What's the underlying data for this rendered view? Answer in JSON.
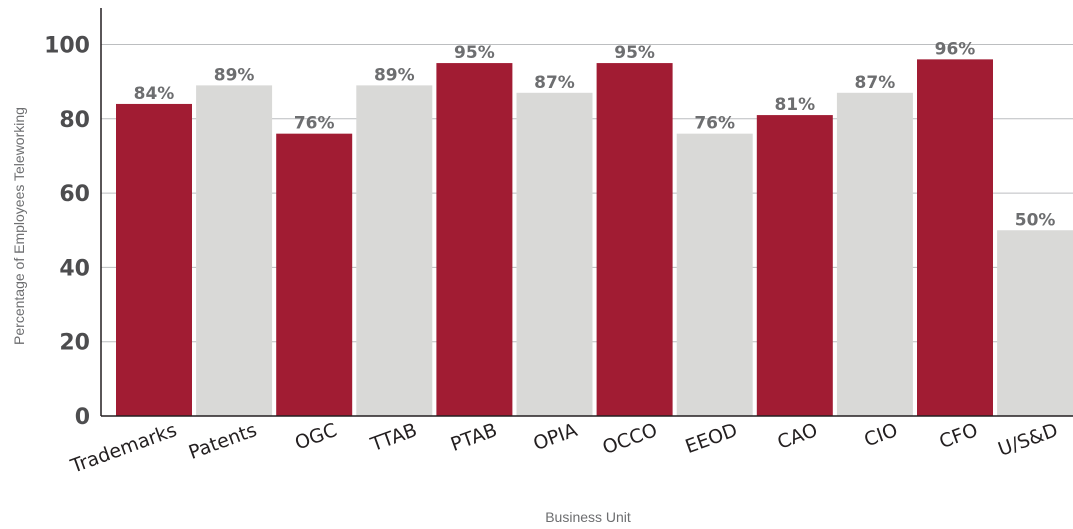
{
  "chart_data": {
    "type": "bar",
    "categories": [
      "Trademarks",
      "Patents",
      "OGC",
      "TTAB",
      "PTAB",
      "OPIA",
      "OCCO",
      "EEOD",
      "CAO",
      "CIO",
      "CFO",
      "U/S&D"
    ],
    "values": [
      84,
      89,
      76,
      89,
      95,
      87,
      95,
      76,
      81,
      87,
      96,
      50
    ],
    "data_labels": [
      "84%",
      "89%",
      "76%",
      "89%",
      "95%",
      "87%",
      "95%",
      "76%",
      "81%",
      "87%",
      "96%",
      "50%"
    ],
    "title": "",
    "xlabel": "Business Unit",
    "ylabel": "Percentage of Employees Teleworking",
    "ylim": [
      0,
      100
    ],
    "yticks": [
      0,
      20,
      40,
      60,
      80,
      100
    ],
    "grid": true,
    "colors": [
      "#a11c33",
      "#d9d9d7",
      "#a11c33",
      "#d9d9d7",
      "#a11c33",
      "#d9d9d7",
      "#a11c33",
      "#d9d9d7",
      "#a11c33",
      "#d9d9d7",
      "#a11c33",
      "#d9d9d7"
    ]
  }
}
